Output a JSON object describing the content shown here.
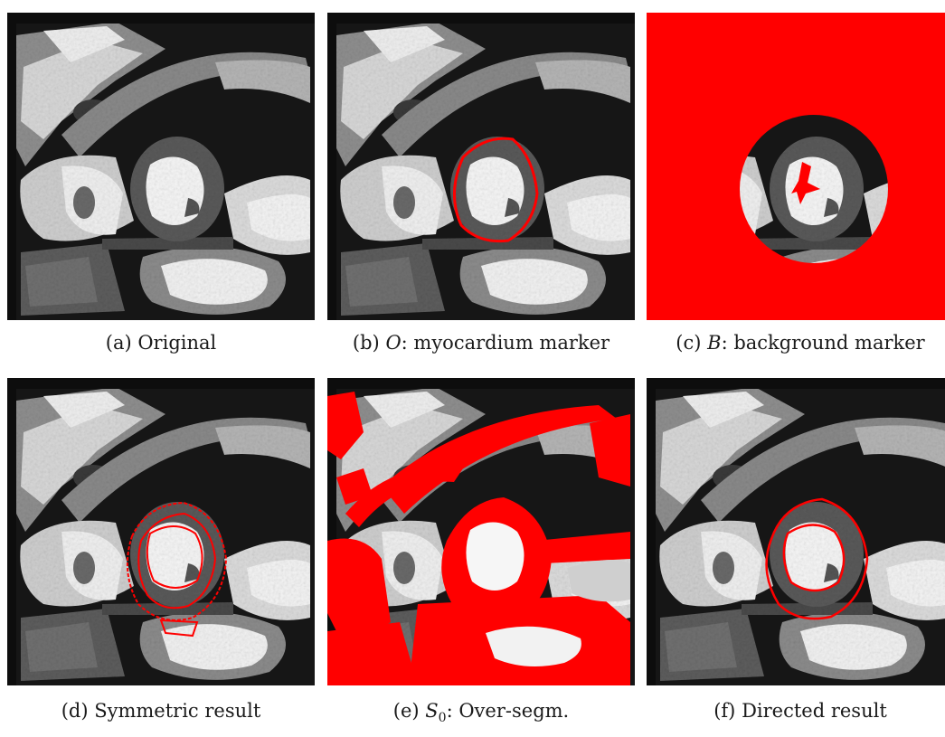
{
  "figure": {
    "panels": [
      {
        "id": "a",
        "label": "(a)",
        "caption": "Original"
      },
      {
        "id": "b",
        "label": "(b)",
        "symbol": "O",
        "caption": ": myocardium marker"
      },
      {
        "id": "c",
        "label": "(c)",
        "symbol": "B",
        "caption": ": background marker"
      },
      {
        "id": "d",
        "label": "(d)",
        "caption": "Symmetric result"
      },
      {
        "id": "e",
        "label": "(e)",
        "symbol": "S",
        "symbol_sub": "0",
        "caption": ": Over-segm."
      },
      {
        "id": "f",
        "label": "(f)",
        "caption": "Directed result"
      }
    ],
    "colors": {
      "marker": "#ff0000",
      "bright_tissue": "#f2f2f2",
      "myocardium": "#5a5a5a",
      "background": "#141414"
    }
  }
}
